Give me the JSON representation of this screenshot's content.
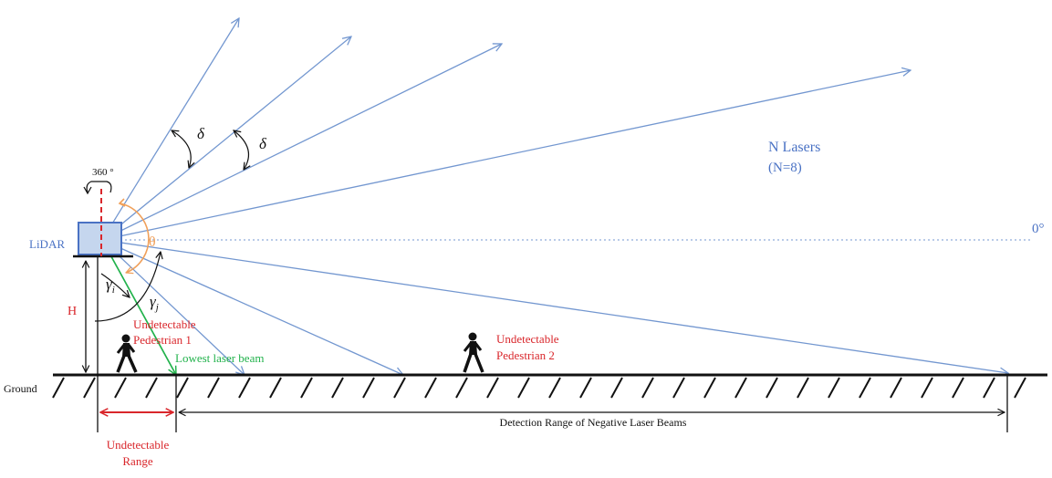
{
  "labels": {
    "lidar": "LiDAR",
    "rotation": "360 °",
    "n_lasers": "N Lasers",
    "n_count": "(N=8)",
    "zero_deg": "0°",
    "theta": "θ",
    "delta_1": "δ",
    "delta_2": "δ",
    "gamma_i": "γ",
    "gamma_i_sub": "i",
    "gamma_j": "γ",
    "gamma_j_sub": "j",
    "height": "H",
    "ground": "Ground",
    "pedestrian_1_line1": "Undetectable",
    "pedestrian_1_line2": "Pedestrian 1",
    "pedestrian_2_line1": "Undetectable",
    "pedestrian_2_line2": "Pedestrian 2",
    "lowest_beam": "Lowest laser beam",
    "undetectable_range_line1": "Undetectable",
    "undetectable_range_line2": "Range",
    "detection_range": "Detection Range of Negative Laser Beams"
  },
  "colors": {
    "beam": "#7397d0",
    "lowest_beam": "#22b24c",
    "red": "#d9262b",
    "orange": "#f0a05a",
    "lidar_fill": "#c5d6ee",
    "lidar_stroke": "#4a72c4",
    "black": "#111111"
  }
}
